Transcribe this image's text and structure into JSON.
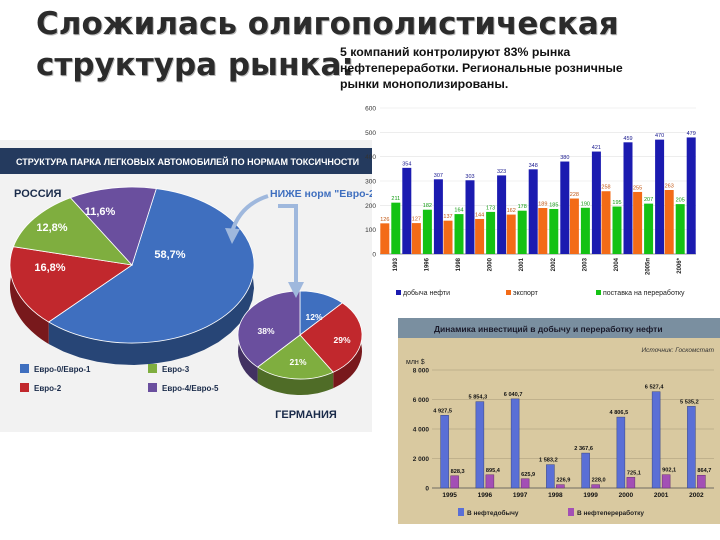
{
  "slide": {
    "title_lines": [
      "Сложилась олигополистическая",
      "структура рынка:"
    ],
    "subtitle_lines": [
      "5 компаний контролируют 83% рынка",
      "нефтепереработки. Региональные розничные",
      "рынки монополизированы."
    ]
  },
  "colors": {
    "production": "#1b1bb0",
    "export": "#f36b17",
    "processing": "#14c214",
    "pie_panel_bg": "#f2f2f2",
    "pie_header_bg": "#243a5e",
    "invest_bg": "#d9c9a0"
  },
  "chart_data": [
    {
      "type": "bar",
      "title": "",
      "xlabel": "",
      "ylabel": "",
      "ylim": [
        0,
        600
      ],
      "yticks": [
        "0",
        "100",
        "200",
        "300",
        "400",
        "500",
        "600"
      ],
      "categories": [
        "1993",
        "1996",
        "1998",
        "2000",
        "2001",
        "2002",
        "2003",
        "2004",
        "2005п",
        "2006*"
      ],
      "series": [
        {
          "name": "добыча нефти",
          "color": "#1b1bb0",
          "values": [
            354,
            307,
            303,
            323,
            348,
            380,
            421,
            459,
            470,
            479
          ],
          "labels": [
            "354",
            "307",
            "303",
            "323",
            "348",
            "380",
            "421",
            "459",
            "470",
            "479"
          ]
        },
        {
          "name": "экспорт",
          "color": "#f36b17",
          "values": [
            126,
            127,
            137,
            144,
            162,
            189,
            228,
            258,
            255,
            263
          ],
          "labels": [
            "126",
            "127",
            "137",
            "144",
            "162",
            "189",
            "228",
            "258",
            "255",
            "263"
          ]
        },
        {
          "name": "поставка на переработку",
          "color": "#14c214",
          "values": [
            211,
            182,
            164,
            173,
            178,
            185,
            190,
            195,
            207,
            205
          ],
          "labels": [
            "211",
            "182",
            "164",
            "173",
            "178",
            "185",
            "190",
            "195",
            "207",
            "205"
          ]
        }
      ],
      "legend_position": "bottom"
    },
    {
      "type": "pie",
      "title": "СТРУКТУРА ПАРКА ЛЕГКОВЫХ АВТОМОБИЛЕЙ ПО НОРМАМ ТОКСИЧНОСТИ",
      "subtitle": "РОССИЯ",
      "annotation": "НИЖЕ норм \"Евро-2\"",
      "slices": [
        {
          "name": "Евро-0/Евро-1",
          "value": 58.7,
          "label": "58,7%",
          "color": "#3f6fbf"
        },
        {
          "name": "Евро-2",
          "value": 16.8,
          "label": "16,8%",
          "color": "#c1282d"
        },
        {
          "name": "Евро-3",
          "value": 12.8,
          "label": "12,8%",
          "color": "#7fae3f"
        },
        {
          "name": "Евро-4/Евро-5",
          "value": 11.6,
          "label": "11,6%",
          "color": "#6a4f9e"
        }
      ],
      "legend_position": "bottom-left"
    },
    {
      "type": "pie",
      "title": "ГЕРМАНИЯ",
      "slices": [
        {
          "name": "Евро-0/Евро-1",
          "value": 12,
          "label": "12%",
          "color": "#3f6fbf"
        },
        {
          "name": "Евро-2",
          "value": 29,
          "label": "29%",
          "color": "#c1282d"
        },
        {
          "name": "Евро-3",
          "value": 21,
          "label": "21%",
          "color": "#7fae3f"
        },
        {
          "name": "Евро-4/Евро-5",
          "value": 38,
          "label": "38%",
          "color": "#6a4f9e"
        }
      ]
    },
    {
      "type": "bar",
      "title": "Динамика инвестиций в добычу и переработку нефти",
      "source": "Источник: Госкомстат",
      "ylabel": "млн $",
      "ylim": [
        0,
        8000
      ],
      "yticks": [
        "0",
        "2 000",
        "4 000",
        "6 000",
        "8 000"
      ],
      "categories": [
        "1995",
        "1996",
        "1997",
        "1998",
        "1999",
        "2000",
        "2001",
        "2002"
      ],
      "series": [
        {
          "name": "В нефтедобычу",
          "color": "#5a6fd6",
          "values": [
            4927.5,
            5854.3,
            6040.7,
            1583.2,
            2367.6,
            4806.5,
            6527.4,
            5535.2
          ],
          "labels": [
            "4 927,5",
            "5 854,3",
            "6 040,7",
            "1 583,2",
            "2 367,6",
            "4 806,5",
            "6 527,4",
            "5 535,2"
          ]
        },
        {
          "name": "В нефтепереработку",
          "color": "#a34fb5",
          "values": [
            828.3,
            895.4,
            625.9,
            226.9,
            228.0,
            725.1,
            902.1,
            864.7
          ],
          "labels": [
            "828,3",
            "895,4",
            "625,9",
            "226,9",
            "228,0",
            "725,1",
            "902,1",
            "864,7"
          ]
        }
      ],
      "legend_position": "bottom"
    }
  ]
}
